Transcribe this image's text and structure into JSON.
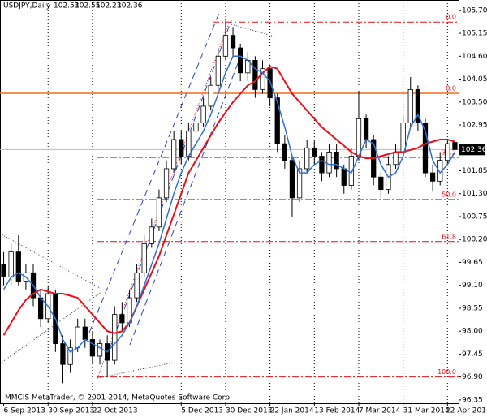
{
  "chart_data": {
    "type": "candlestick",
    "title": "USDJPY,Daily",
    "header_values": [
      102.53,
      102.55,
      102.23,
      102.36
    ],
    "footer": "MMCIS MetaTrader, © 2001-2014, MetaQuotes Software Corp.",
    "categories": [
      "6 Sep 2013",
      null,
      null,
      null,
      null,
      null,
      "30 Sep 2013",
      null,
      null,
      null,
      null,
      null,
      "22 Oct 2013",
      null,
      null,
      null,
      null,
      null,
      null,
      null,
      null,
      null,
      null,
      null,
      "5 Dec 2013",
      null,
      null,
      null,
      null,
      null,
      "30 Dec 2013",
      null,
      null,
      null,
      null,
      null,
      "22 Jan 2014",
      null,
      null,
      null,
      null,
      null,
      "13 Feb 2014",
      null,
      null,
      null,
      null,
      null,
      "7 Mar 2014",
      null,
      null,
      null,
      null,
      null,
      "31 Mar 2014",
      null,
      null,
      null,
      null,
      null,
      "22 Apr 2014",
      null
    ],
    "open": [
      99.6,
      99.3,
      99.9,
      99.2,
      99.4,
      98.8,
      98.3,
      98.9,
      97.7,
      97.2,
      97.6,
      98.1,
      97.8,
      97.4,
      97.7,
      97.3,
      98.4,
      98.2,
      98.8,
      99.4,
      100.1,
      100.5,
      101.2,
      101.9,
      102.6,
      102.2,
      102.8,
      103.0,
      103.4,
      103.9,
      104.6,
      105.1,
      104.8,
      104.2,
      104.5,
      103.8,
      104.3,
      103.6,
      102.5,
      102.1,
      101.2,
      101.9,
      102.4,
      102.2,
      101.8,
      102.3,
      101.9,
      101.5,
      102.2,
      103.1,
      102.6,
      101.7,
      101.4,
      102.0,
      102.3,
      103.0,
      103.8,
      103.0,
      101.8,
      101.6,
      102.1,
      102.53
    ],
    "high": [
      99.9,
      100.1,
      100.3,
      99.6,
      99.6,
      99.0,
      99.1,
      99.0,
      97.9,
      97.8,
      98.3,
      98.3,
      98.0,
      97.8,
      97.9,
      98.6,
      98.7,
      99.0,
      99.6,
      100.3,
      100.7,
      101.4,
      102.1,
      102.8,
      102.8,
      103.0,
      103.3,
      103.6,
      104.1,
      104.8,
      105.45,
      105.3,
      104.9,
      104.7,
      104.6,
      104.5,
      104.4,
      103.7,
      102.7,
      102.2,
      102.1,
      102.6,
      102.6,
      102.3,
      102.5,
      102.5,
      102.0,
      102.4,
      103.75,
      103.2,
      102.7,
      101.8,
      102.2,
      102.5,
      103.2,
      104.1,
      103.9,
      103.1,
      102.0,
      102.3,
      102.6,
      102.55
    ],
    "low": [
      99.1,
      99.1,
      99.1,
      99.0,
      98.6,
      98.1,
      98.2,
      97.5,
      96.75,
      97.0,
      97.5,
      97.6,
      97.2,
      97.2,
      96.9,
      97.2,
      98.0,
      98.1,
      98.7,
      99.3,
      100.0,
      100.4,
      101.1,
      101.8,
      102.0,
      102.1,
      102.7,
      102.9,
      103.3,
      103.8,
      104.5,
      104.6,
      104.0,
      104.0,
      103.6,
      103.7,
      103.4,
      102.3,
      101.9,
      100.75,
      101.1,
      101.8,
      102.0,
      101.6,
      101.7,
      101.7,
      101.3,
      101.4,
      102.1,
      102.4,
      101.5,
      101.2,
      101.3,
      101.9,
      102.2,
      102.9,
      102.8,
      101.7,
      101.35,
      101.5,
      102.0,
      102.23
    ],
    "close": [
      99.3,
      99.9,
      99.2,
      99.4,
      98.8,
      98.3,
      98.9,
      97.7,
      97.2,
      97.6,
      98.1,
      97.8,
      97.4,
      97.7,
      97.3,
      98.4,
      98.2,
      98.8,
      99.4,
      100.1,
      100.5,
      101.2,
      101.9,
      102.6,
      102.2,
      102.8,
      103.0,
      103.4,
      103.9,
      104.6,
      105.1,
      104.8,
      104.2,
      104.5,
      103.8,
      104.3,
      103.6,
      102.5,
      102.1,
      101.2,
      101.9,
      102.4,
      102.2,
      101.8,
      102.3,
      101.9,
      101.5,
      102.2,
      103.1,
      102.6,
      101.7,
      101.4,
      102.0,
      102.3,
      103.0,
      103.8,
      103.0,
      101.8,
      101.6,
      102.1,
      102.5,
      102.36
    ],
    "ma_lines": [
      {
        "color": "#e8101a",
        "values": [
          97.9,
          98.2,
          98.5,
          98.75,
          98.9,
          99.0,
          98.95,
          98.9,
          98.9,
          98.85,
          98.8,
          98.6,
          98.4,
          98.2,
          98.0,
          97.95,
          98.0,
          98.2,
          98.6,
          99.0,
          99.4,
          99.8,
          100.3,
          100.8,
          101.3,
          101.8,
          102.1,
          102.4,
          102.7,
          103.0,
          103.25,
          103.5,
          103.7,
          103.9,
          104.0,
          104.2,
          104.35,
          104.3,
          104.0,
          103.7,
          103.5,
          103.3,
          103.1,
          102.9,
          102.75,
          102.6,
          102.45,
          102.3,
          102.2,
          102.15,
          102.15,
          102.2,
          102.25,
          102.3,
          102.3,
          102.35,
          102.4,
          102.5,
          102.55,
          102.6,
          102.6,
          102.55
        ]
      },
      {
        "color": "#2f6fd8",
        "values": [
          99.0,
          99.3,
          99.4,
          99.3,
          99.1,
          98.8,
          98.6,
          98.3,
          97.8,
          97.5,
          97.6,
          97.8,
          97.7,
          97.6,
          97.5,
          97.7,
          97.9,
          98.2,
          98.6,
          99.1,
          99.6,
          100.1,
          100.7,
          101.3,
          101.8,
          102.2,
          102.5,
          102.8,
          103.2,
          103.7,
          104.2,
          104.6,
          104.6,
          104.5,
          104.3,
          104.2,
          104.0,
          103.5,
          102.9,
          102.2,
          101.8,
          101.8,
          102.0,
          102.1,
          102.0,
          102.0,
          101.9,
          101.8,
          102.2,
          102.6,
          102.5,
          102.0,
          101.7,
          101.8,
          102.2,
          102.9,
          103.2,
          102.8,
          102.1,
          101.8,
          102.0,
          102.3
        ]
      }
    ],
    "fib_levels": [
      {
        "value": 105.42,
        "label": "0.0"
      },
      {
        "value": 102.17,
        "label": "38.2"
      },
      {
        "value": 101.16,
        "label": "50.0"
      },
      {
        "value": 100.15,
        "label": "61.8"
      },
      {
        "value": 96.9,
        "label": "100.0"
      }
    ],
    "hline": {
      "value": 103.71,
      "label": "0.0",
      "color": "#f26b1d"
    },
    "last_price": 102.36,
    "ylim": [
      96.27,
      105.95
    ],
    "yticks": [
      {
        "value": 105.7,
        "label": "105.70"
      },
      105.15,
      {
        "value": 104.6,
        "label": "104.60"
      },
      104.05,
      {
        "value": 103.5,
        "label": "103.50"
      },
      102.95,
      101.85,
      {
        "value": 101.3,
        "label": "101.30"
      },
      100.75,
      {
        "value": 100.2,
        "label": "100.20"
      },
      99.65,
      {
        "value": 99.1,
        "label": "99.10"
      },
      98.55,
      {
        "value": 98.0,
        "label": "98.00"
      },
      97.45,
      {
        "value": 96.9,
        "label": "96.90"
      },
      96.35
    ],
    "grid": true
  }
}
